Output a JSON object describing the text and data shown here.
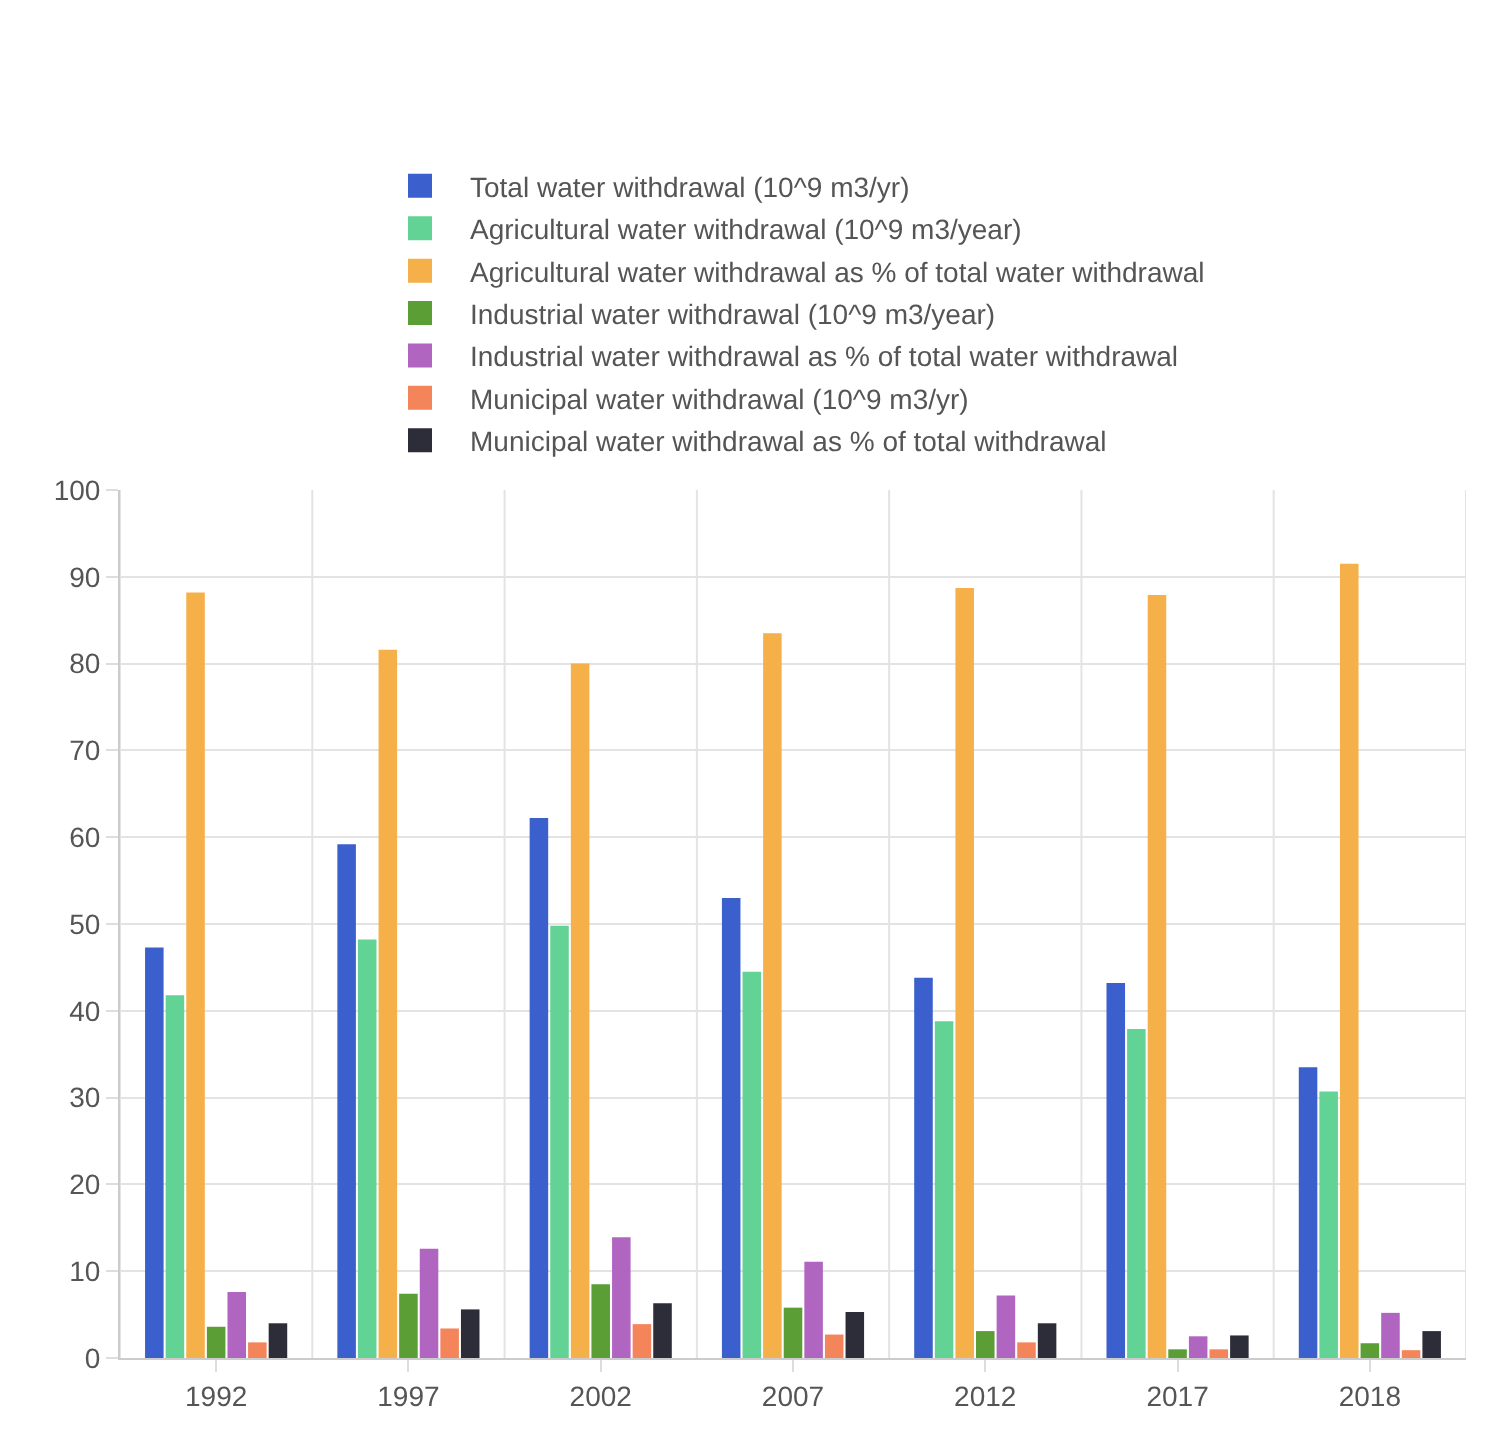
{
  "chart_data": {
    "type": "bar",
    "categories": [
      "1992",
      "1997",
      "2002",
      "2007",
      "2012",
      "2017",
      "2018"
    ],
    "series": [
      {
        "name": "Total water withdrawal (10^9 m3/yr)",
        "color": "#3b5fcc",
        "values": [
          47.3,
          59.2,
          62.2,
          53,
          43.8,
          43.2,
          33.5
        ]
      },
      {
        "name": "Agricultural water withdrawal (10^9 m3/year)",
        "color": "#62d394",
        "values": [
          41.8,
          48.2,
          49.8,
          44.5,
          38.8,
          37.9,
          30.7
        ]
      },
      {
        "name": "Agricultural water withdrawal as % of total water withdrawal",
        "color": "#f5b04a",
        "values": [
          88.2,
          81.6,
          80,
          83.5,
          88.7,
          87.9,
          91.5
        ]
      },
      {
        "name": "Industrial water withdrawal (10^9 m3/year)",
        "color": "#5a9e35",
        "values": [
          3.6,
          7.4,
          8.5,
          5.8,
          3.1,
          1,
          1.7
        ]
      },
      {
        "name": "Industrial water withdrawal as % of total water withdrawal",
        "color": "#b066c0",
        "values": [
          7.6,
          12.6,
          13.9,
          11.1,
          7.2,
          2.5,
          5.2
        ]
      },
      {
        "name": "Municipal water withdrawal (10^9 m3/yr)",
        "color": "#f4845a",
        "values": [
          1.8,
          3.4,
          3.9,
          2.7,
          1.8,
          1,
          0.9
        ]
      },
      {
        "name": "Municipal water withdrawal as % of total withdrawal",
        "color": "#2d2d3a",
        "values": [
          4,
          5.6,
          6.3,
          5.3,
          4,
          2.6,
          3.1
        ]
      }
    ],
    "ylim": [
      0,
      100
    ],
    "yticks": [
      0,
      10,
      20,
      30,
      40,
      50,
      60,
      70,
      80,
      90,
      100
    ],
    "grid": true,
    "legend": "top"
  }
}
